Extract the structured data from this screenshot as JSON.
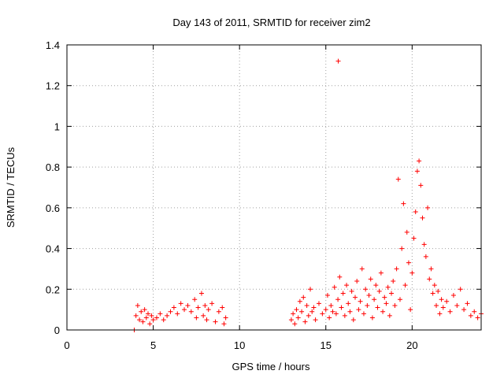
{
  "chart_data": {
    "type": "scatter",
    "title": "Day 143 of 2011, SRMTID for receiver zim2",
    "xlabel": "GPS time / hours",
    "ylabel": "SRMTID / TECUs",
    "xlim": [
      0,
      24
    ],
    "ylim": [
      0,
      1.4
    ],
    "xticks": [
      "0",
      "5",
      "10",
      "15",
      "20"
    ],
    "yticks": [
      "0",
      "0.2",
      "0.4",
      "0.6",
      "0.8",
      "1",
      "1.2",
      "1.4"
    ],
    "grid": true,
    "marker": "+",
    "color": "#ff0000",
    "series": [
      {
        "points": [
          [
            3.9,
            0.0
          ],
          [
            4.0,
            0.07
          ],
          [
            4.1,
            0.12
          ],
          [
            4.2,
            0.05
          ],
          [
            4.3,
            0.09
          ],
          [
            4.4,
            0.04
          ],
          [
            4.5,
            0.1
          ],
          [
            4.6,
            0.06
          ],
          [
            4.7,
            0.08
          ],
          [
            4.8,
            0.03
          ],
          [
            4.9,
            0.07
          ],
          [
            5.0,
            0.05
          ],
          [
            5.2,
            0.06
          ],
          [
            5.4,
            0.08
          ],
          [
            5.6,
            0.05
          ],
          [
            5.8,
            0.07
          ],
          [
            6.0,
            0.09
          ],
          [
            6.2,
            0.11
          ],
          [
            6.4,
            0.08
          ],
          [
            6.6,
            0.13
          ],
          [
            6.8,
            0.1
          ],
          [
            7.0,
            0.12
          ],
          [
            7.2,
            0.09
          ],
          [
            7.4,
            0.15
          ],
          [
            7.5,
            0.06
          ],
          [
            7.6,
            0.11
          ],
          [
            7.8,
            0.18
          ],
          [
            7.9,
            0.07
          ],
          [
            8.0,
            0.12
          ],
          [
            8.1,
            0.05
          ],
          [
            8.2,
            0.1
          ],
          [
            8.4,
            0.13
          ],
          [
            8.6,
            0.04
          ],
          [
            8.8,
            0.09
          ],
          [
            9.0,
            0.11
          ],
          [
            9.1,
            0.03
          ],
          [
            9.2,
            0.06
          ],
          [
            13.0,
            0.05
          ],
          [
            13.1,
            0.08
          ],
          [
            13.2,
            0.03
          ],
          [
            13.3,
            0.1
          ],
          [
            13.4,
            0.06
          ],
          [
            13.5,
            0.14
          ],
          [
            13.6,
            0.09
          ],
          [
            13.7,
            0.16
          ],
          [
            13.8,
            0.04
          ],
          [
            13.9,
            0.12
          ],
          [
            14.0,
            0.07
          ],
          [
            14.1,
            0.2
          ],
          [
            14.2,
            0.09
          ],
          [
            14.3,
            0.11
          ],
          [
            14.4,
            0.05
          ],
          [
            14.6,
            0.13
          ],
          [
            14.8,
            0.08
          ],
          [
            15.0,
            0.1
          ],
          [
            15.1,
            0.17
          ],
          [
            15.2,
            0.06
          ],
          [
            15.3,
            0.12
          ],
          [
            15.4,
            0.09
          ],
          [
            15.5,
            0.21
          ],
          [
            15.6,
            0.08
          ],
          [
            15.7,
            0.15
          ],
          [
            15.72,
            1.32
          ],
          [
            15.8,
            0.26
          ],
          [
            15.9,
            0.11
          ],
          [
            16.0,
            0.18
          ],
          [
            16.1,
            0.07
          ],
          [
            16.2,
            0.22
          ],
          [
            16.3,
            0.13
          ],
          [
            16.4,
            0.09
          ],
          [
            16.5,
            0.19
          ],
          [
            16.6,
            0.05
          ],
          [
            16.7,
            0.16
          ],
          [
            16.8,
            0.24
          ],
          [
            16.9,
            0.1
          ],
          [
            17.0,
            0.14
          ],
          [
            17.1,
            0.3
          ],
          [
            17.2,
            0.08
          ],
          [
            17.3,
            0.2
          ],
          [
            17.4,
            0.12
          ],
          [
            17.5,
            0.17
          ],
          [
            17.6,
            0.25
          ],
          [
            17.7,
            0.06
          ],
          [
            17.8,
            0.15
          ],
          [
            17.9,
            0.22
          ],
          [
            18.0,
            0.11
          ],
          [
            18.1,
            0.19
          ],
          [
            18.2,
            0.28
          ],
          [
            18.3,
            0.09
          ],
          [
            18.4,
            0.16
          ],
          [
            18.5,
            0.13
          ],
          [
            18.6,
            0.21
          ],
          [
            18.7,
            0.07
          ],
          [
            18.8,
            0.18
          ],
          [
            18.9,
            0.24
          ],
          [
            19.0,
            0.12
          ],
          [
            19.1,
            0.3
          ],
          [
            19.2,
            0.74
          ],
          [
            19.3,
            0.15
          ],
          [
            19.4,
            0.4
          ],
          [
            19.5,
            0.62
          ],
          [
            19.6,
            0.22
          ],
          [
            19.7,
            0.48
          ],
          [
            19.8,
            0.33
          ],
          [
            19.9,
            0.1
          ],
          [
            20.0,
            0.28
          ],
          [
            20.1,
            0.45
          ],
          [
            20.2,
            0.58
          ],
          [
            20.3,
            0.78
          ],
          [
            20.4,
            0.83
          ],
          [
            20.5,
            0.71
          ],
          [
            20.6,
            0.55
          ],
          [
            20.7,
            0.42
          ],
          [
            20.8,
            0.36
          ],
          [
            20.9,
            0.6
          ],
          [
            21.0,
            0.25
          ],
          [
            21.1,
            0.3
          ],
          [
            21.2,
            0.18
          ],
          [
            21.3,
            0.22
          ],
          [
            21.4,
            0.12
          ],
          [
            21.5,
            0.19
          ],
          [
            21.6,
            0.08
          ],
          [
            21.7,
            0.15
          ],
          [
            21.8,
            0.11
          ],
          [
            22.0,
            0.14
          ],
          [
            22.2,
            0.09
          ],
          [
            22.4,
            0.17
          ],
          [
            22.6,
            0.12
          ],
          [
            22.8,
            0.2
          ],
          [
            23.0,
            0.1
          ],
          [
            23.2,
            0.13
          ],
          [
            23.4,
            0.07
          ],
          [
            23.6,
            0.09
          ],
          [
            23.8,
            0.06
          ],
          [
            24.0,
            0.08
          ]
        ]
      }
    ]
  }
}
